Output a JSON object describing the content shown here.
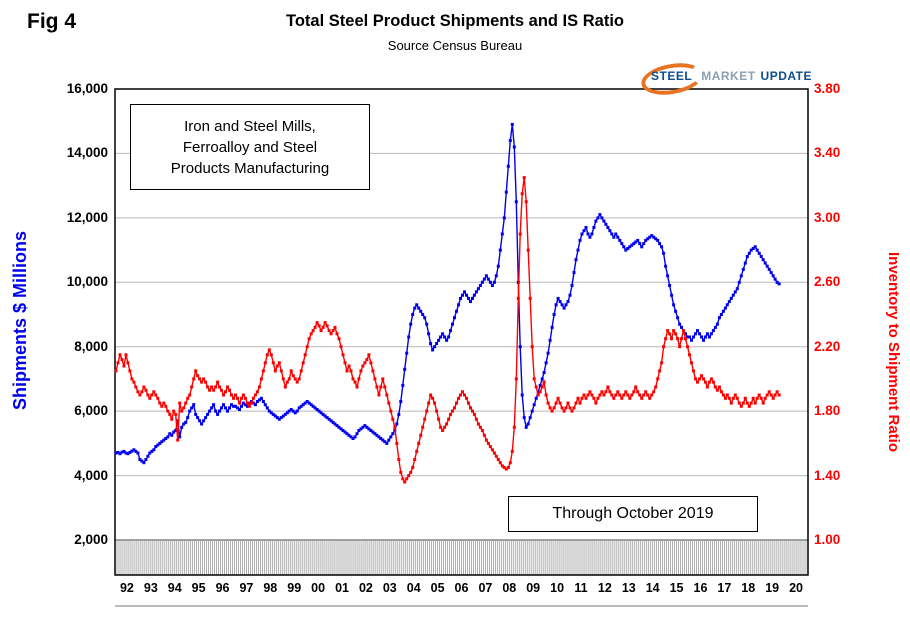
{
  "fig_label": "Fig 4",
  "title": "Total Steel Product Shipments and IS Ratio",
  "subtitle": "Source Census Bureau",
  "logo": {
    "steel": "STEEL",
    "market": "MARKET",
    "update": "UPDATE",
    "swoosh_color": "#e87422"
  },
  "annotations": {
    "industry_box": [
      "Iron and Steel Mills,",
      "Ferroalloy and Steel",
      "Products Manufacturing"
    ],
    "through_box": "Through October 2019"
  },
  "chart_data": {
    "type": "line",
    "title": "Total Steel Product Shipments and IS Ratio",
    "subtitle": "Source Census Bureau",
    "x_frequency": "monthly",
    "data_start": "1992-01",
    "data_end": "2019-10",
    "marker": "square",
    "grid": "horizontal",
    "x_axis_years": [
      "92",
      "93",
      "94",
      "95",
      "96",
      "97",
      "98",
      "99",
      "00",
      "01",
      "02",
      "03",
      "04",
      "05",
      "06",
      "07",
      "08",
      "09",
      "10",
      "11",
      "12",
      "13",
      "14",
      "15",
      "16",
      "17",
      "18",
      "19",
      "20"
    ],
    "left_axis": {
      "label": "Shipments $ Millions",
      "min": 2000,
      "max": 16000,
      "tick_step": 2000,
      "tick_labels": [
        "16,000",
        "14,000",
        "12,000",
        "10,000",
        "8,000",
        "6,000",
        "4,000",
        "2,000"
      ],
      "color": "#0000EE"
    },
    "right_axis": {
      "label": "Inventory to Shipment Ratio",
      "min": 1.0,
      "max": 3.8,
      "tick_step": 0.4,
      "tick_labels": [
        "3.80",
        "3.40",
        "3.00",
        "2.60",
        "2.20",
        "1.80",
        "1.40",
        "1.00"
      ],
      "color": "#FF0000"
    },
    "series": [
      {
        "name": "Total Steel Product Shipments",
        "axis": "left",
        "color": "#0000EE",
        "values": [
          4700,
          4720,
          4680,
          4730,
          4750,
          4700,
          4680,
          4720,
          4760,
          4800,
          4750,
          4700,
          4500,
          4450,
          4400,
          4500,
          4600,
          4700,
          4750,
          4800,
          4900,
          4950,
          5000,
          5050,
          5100,
          5150,
          5200,
          5300,
          5250,
          5350,
          5400,
          5700,
          5200,
          5500,
          5600,
          5650,
          5800,
          6000,
          6100,
          6200,
          5900,
          5800,
          5700,
          5600,
          5700,
          5800,
          5900,
          6000,
          6100,
          6200,
          6000,
          5900,
          6000,
          6100,
          6200,
          6100,
          6000,
          6100,
          6200,
          6150,
          6150,
          6100,
          6050,
          6150,
          6250,
          6200,
          6150,
          6250,
          6300,
          6250,
          6200,
          6300,
          6350,
          6400,
          6300,
          6200,
          6100,
          6000,
          5950,
          5900,
          5850,
          5800,
          5750,
          5800,
          5850,
          5900,
          5950,
          6000,
          6050,
          6000,
          5950,
          6000,
          6100,
          6150,
          6200,
          6250,
          6300,
          6250,
          6200,
          6150,
          6100,
          6050,
          6000,
          5950,
          5900,
          5850,
          5800,
          5750,
          5700,
          5650,
          5600,
          5550,
          5500,
          5450,
          5400,
          5350,
          5300,
          5250,
          5200,
          5150,
          5200,
          5300,
          5400,
          5450,
          5500,
          5550,
          5500,
          5450,
          5400,
          5350,
          5300,
          5250,
          5200,
          5150,
          5100,
          5050,
          5000,
          5100,
          5200,
          5300,
          5400,
          5600,
          5900,
          6300,
          6800,
          7300,
          7800,
          8300,
          8700,
          9000,
          9200,
          9300,
          9200,
          9100,
          9000,
          8900,
          8700,
          8400,
          8100,
          7900,
          8000,
          8100,
          8200,
          8300,
          8400,
          8300,
          8200,
          8300,
          8500,
          8700,
          8900,
          9100,
          9300,
          9500,
          9600,
          9700,
          9600,
          9500,
          9400,
          9500,
          9600,
          9700,
          9800,
          9900,
          10000,
          10100,
          10200,
          10100,
          10000,
          9900,
          10000,
          10200,
          10500,
          11000,
          11500,
          12000,
          12800,
          13600,
          14400,
          14900,
          14200,
          12500,
          10000,
          8000,
          6500,
          5800,
          5500,
          5600,
          5800,
          6000,
          6200,
          6400,
          6600,
          6800,
          7000,
          7200,
          7500,
          7800,
          8200,
          8600,
          9000,
          9300,
          9500,
          9400,
          9300,
          9200,
          9300,
          9400,
          9600,
          9900,
          10300,
          10700,
          11000,
          11300,
          11500,
          11600,
          11700,
          11500,
          11400,
          11500,
          11700,
          11900,
          12000,
          12100,
          12000,
          11900,
          11800,
          11700,
          11600,
          11500,
          11400,
          11500,
          11400,
          11300,
          11200,
          11100,
          11000,
          11050,
          11100,
          11150,
          11200,
          11250,
          11300,
          11200,
          11100,
          11200,
          11300,
          11350,
          11400,
          11450,
          11400,
          11350,
          11300,
          11200,
          11100,
          10900,
          10500,
          10200,
          9900,
          9600,
          9300,
          9100,
          8900,
          8700,
          8600,
          8500,
          8400,
          8300,
          8300,
          8200,
          8300,
          8400,
          8500,
          8400,
          8300,
          8200,
          8300,
          8400,
          8300,
          8400,
          8500,
          8600,
          8700,
          8900,
          9000,
          9100,
          9200,
          9300,
          9400,
          9500,
          9600,
          9700,
          9800,
          10000,
          10200,
          10400,
          10600,
          10800,
          10900,
          11000,
          11050,
          11100,
          11000,
          10900,
          10800,
          10700,
          10600,
          10500,
          10400,
          10300,
          10200,
          10100,
          10000,
          9950
        ]
      },
      {
        "name": "Inventory to Shipment Ratio",
        "axis": "right",
        "color": "#FF0000",
        "values": [
          2.05,
          2.1,
          2.15,
          2.12,
          2.08,
          2.15,
          2.1,
          2.05,
          2.0,
          1.98,
          1.95,
          1.92,
          1.9,
          1.92,
          1.95,
          1.93,
          1.9,
          1.88,
          1.9,
          1.92,
          1.9,
          1.88,
          1.85,
          1.83,
          1.85,
          1.83,
          1.8,
          1.78,
          1.75,
          1.8,
          1.78,
          1.62,
          1.85,
          1.8,
          1.82,
          1.85,
          1.88,
          1.9,
          1.95,
          2.0,
          2.05,
          2.02,
          2.0,
          1.98,
          2.0,
          1.98,
          1.95,
          1.93,
          1.95,
          1.93,
          1.95,
          1.98,
          1.95,
          1.93,
          1.9,
          1.92,
          1.95,
          1.93,
          1.9,
          1.88,
          1.9,
          1.88,
          1.85,
          1.88,
          1.9,
          1.88,
          1.85,
          1.83,
          1.85,
          1.88,
          1.9,
          1.92,
          1.95,
          2.0,
          2.05,
          2.1,
          2.15,
          2.18,
          2.15,
          2.1,
          2.05,
          2.08,
          2.1,
          2.05,
          2.0,
          1.95,
          1.98,
          2.0,
          2.05,
          2.02,
          2.0,
          1.98,
          2.0,
          2.05,
          2.1,
          2.15,
          2.2,
          2.25,
          2.28,
          2.3,
          2.32,
          2.35,
          2.33,
          2.3,
          2.32,
          2.35,
          2.33,
          2.3,
          2.28,
          2.3,
          2.32,
          2.28,
          2.25,
          2.2,
          2.15,
          2.1,
          2.05,
          2.08,
          2.05,
          2.0,
          1.98,
          1.95,
          2.0,
          2.05,
          2.08,
          2.1,
          2.12,
          2.15,
          2.1,
          2.05,
          2.0,
          1.95,
          1.9,
          1.95,
          2.0,
          1.95,
          1.9,
          1.85,
          1.8,
          1.75,
          1.7,
          1.6,
          1.5,
          1.42,
          1.38,
          1.36,
          1.38,
          1.4,
          1.42,
          1.45,
          1.5,
          1.55,
          1.6,
          1.65,
          1.7,
          1.75,
          1.8,
          1.85,
          1.9,
          1.88,
          1.85,
          1.8,
          1.75,
          1.7,
          1.68,
          1.7,
          1.72,
          1.75,
          1.78,
          1.8,
          1.82,
          1.85,
          1.88,
          1.9,
          1.92,
          1.9,
          1.88,
          1.85,
          1.82,
          1.8,
          1.78,
          1.75,
          1.72,
          1.7,
          1.68,
          1.65,
          1.62,
          1.6,
          1.58,
          1.56,
          1.54,
          1.52,
          1.5,
          1.48,
          1.46,
          1.45,
          1.44,
          1.45,
          1.48,
          1.55,
          1.7,
          2.0,
          2.5,
          2.9,
          3.15,
          3.25,
          3.1,
          2.8,
          2.5,
          2.2,
          2.0,
          1.95,
          1.9,
          1.92,
          1.95,
          1.98,
          1.9,
          1.85,
          1.82,
          1.8,
          1.82,
          1.85,
          1.88,
          1.85,
          1.82,
          1.8,
          1.82,
          1.85,
          1.82,
          1.8,
          1.82,
          1.85,
          1.88,
          1.85,
          1.88,
          1.9,
          1.88,
          1.9,
          1.92,
          1.9,
          1.88,
          1.85,
          1.88,
          1.9,
          1.92,
          1.9,
          1.92,
          1.95,
          1.92,
          1.9,
          1.88,
          1.9,
          1.92,
          1.9,
          1.88,
          1.9,
          1.92,
          1.9,
          1.88,
          1.9,
          1.92,
          1.95,
          1.92,
          1.9,
          1.88,
          1.9,
          1.92,
          1.9,
          1.88,
          1.9,
          1.92,
          1.95,
          2.0,
          2.05,
          2.1,
          2.2,
          2.25,
          2.3,
          2.28,
          2.25,
          2.3,
          2.28,
          2.25,
          2.2,
          2.25,
          2.3,
          2.25,
          2.2,
          2.15,
          2.1,
          2.05,
          2.0,
          1.98,
          2.0,
          2.02,
          2.0,
          1.98,
          1.95,
          1.98,
          2.0,
          1.98,
          1.95,
          1.93,
          1.95,
          1.92,
          1.9,
          1.88,
          1.9,
          1.88,
          1.85,
          1.88,
          1.9,
          1.88,
          1.85,
          1.83,
          1.85,
          1.88,
          1.85,
          1.83,
          1.85,
          1.88,
          1.85,
          1.88,
          1.9,
          1.88,
          1.85,
          1.88,
          1.9,
          1.92,
          1.9,
          1.88,
          1.9,
          1.92,
          1.9
        ]
      }
    ]
  }
}
